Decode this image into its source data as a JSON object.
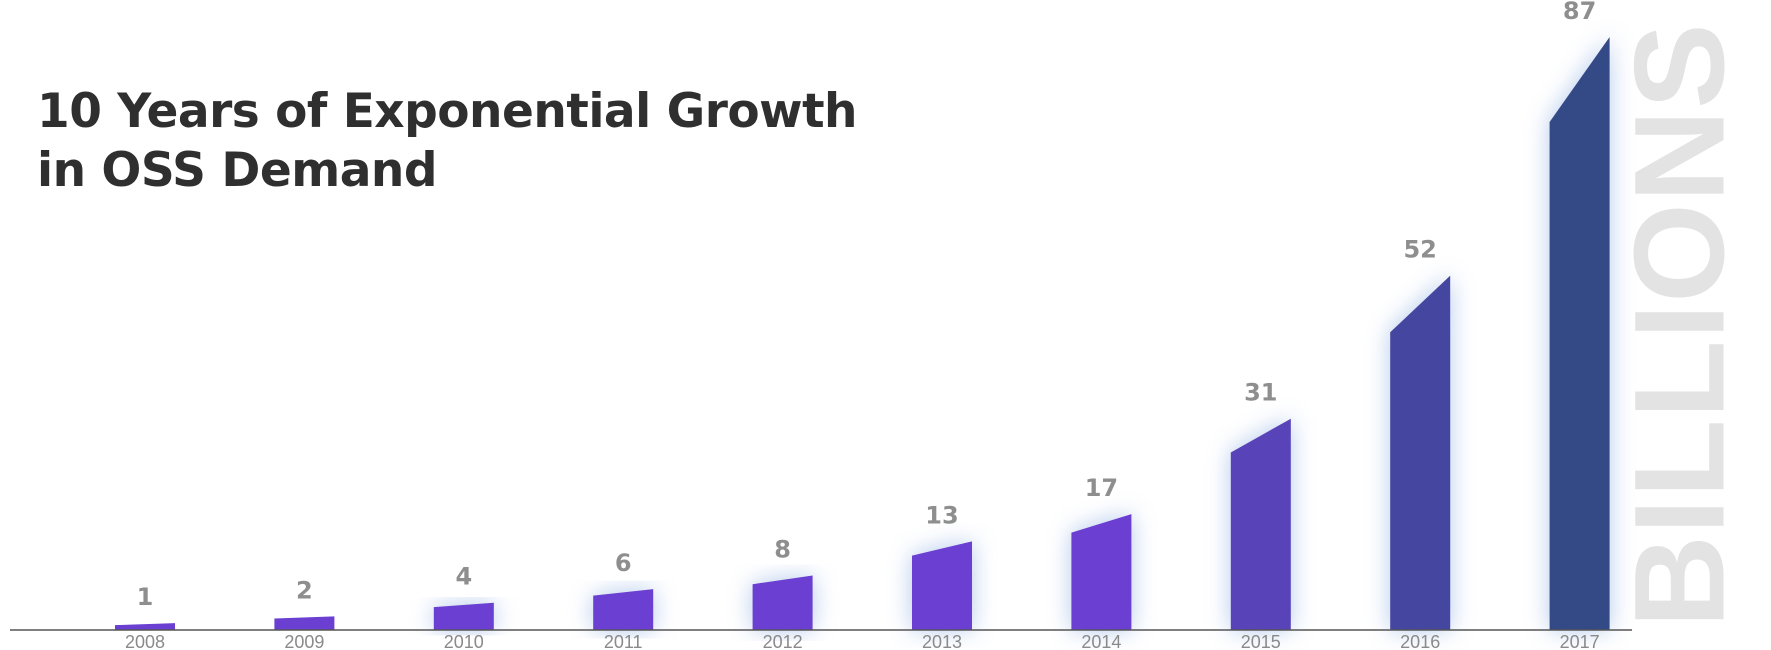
{
  "chart_data": {
    "type": "bar",
    "title_lines": [
      "10 Years of Exponential Growth",
      "in OSS Demand"
    ],
    "unit_label": "BILLIONS",
    "categories": [
      "2008",
      "2009",
      "2010",
      "2011",
      "2012",
      "2013",
      "2014",
      "2015",
      "2016",
      "2017"
    ],
    "values": [
      1,
      2,
      4,
      6,
      8,
      13,
      17,
      31,
      52,
      87
    ],
    "value_labels": [
      "1",
      "2",
      "4",
      "6",
      "8",
      "13",
      "17",
      "31",
      "52",
      "87"
    ],
    "ylim": [
      0,
      87
    ],
    "grid": false,
    "legend": "none",
    "colors": {
      "bar_start": "#6a3fd1",
      "bar_end": "#334a86",
      "glow": "#9bb8e6",
      "baseline": "#555555"
    }
  }
}
